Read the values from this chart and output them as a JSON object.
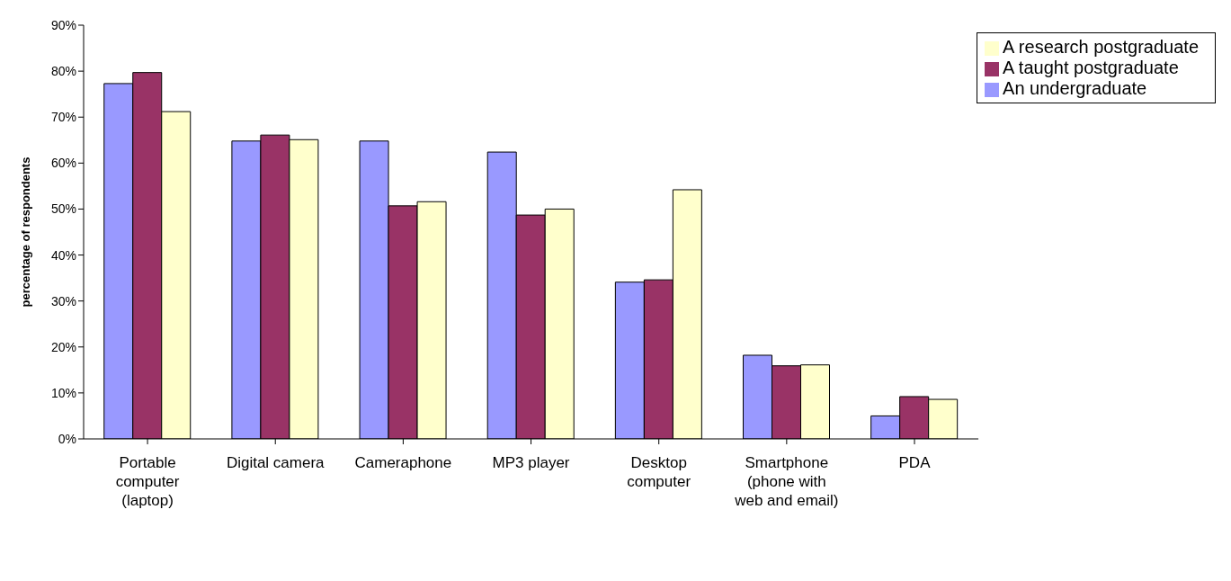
{
  "chart_data": {
    "type": "bar",
    "ylabel": "percentage of respondents",
    "categories": [
      "Portable computer (laptop)",
      "Digital camera",
      "Cameraphone",
      "MP3 player",
      "Desktop computer",
      "Smartphone (phone with web and email)",
      "PDA"
    ],
    "series": [
      {
        "name": "An undergraduate",
        "color": "#9999ff",
        "values": [
          77.3,
          64.8,
          64.8,
          62.4,
          34.1,
          18.2,
          5.0
        ]
      },
      {
        "name": "A taught postgraduate",
        "color": "#993366",
        "values": [
          79.7,
          66.1,
          50.7,
          48.7,
          34.6,
          15.9,
          9.2
        ]
      },
      {
        "name": "A research postgraduate",
        "color": "#ffffcc",
        "values": [
          71.2,
          65.1,
          51.6,
          50.0,
          54.2,
          16.1,
          8.6
        ]
      }
    ],
    "ylim": [
      0,
      90
    ],
    "yticks": [
      {
        "value": 0,
        "label": "0%"
      },
      {
        "value": 10,
        "label": "10%"
      },
      {
        "value": 20,
        "label": "20%"
      },
      {
        "value": 30,
        "label": "30%"
      },
      {
        "value": 40,
        "label": "40%"
      },
      {
        "value": 50,
        "label": "50%"
      },
      {
        "value": 60,
        "label": "60%"
      },
      {
        "value": 70,
        "label": "70%"
      },
      {
        "value": 80,
        "label": "80%"
      },
      {
        "value": 90,
        "label": "90%"
      }
    ],
    "legend": "top right"
  }
}
